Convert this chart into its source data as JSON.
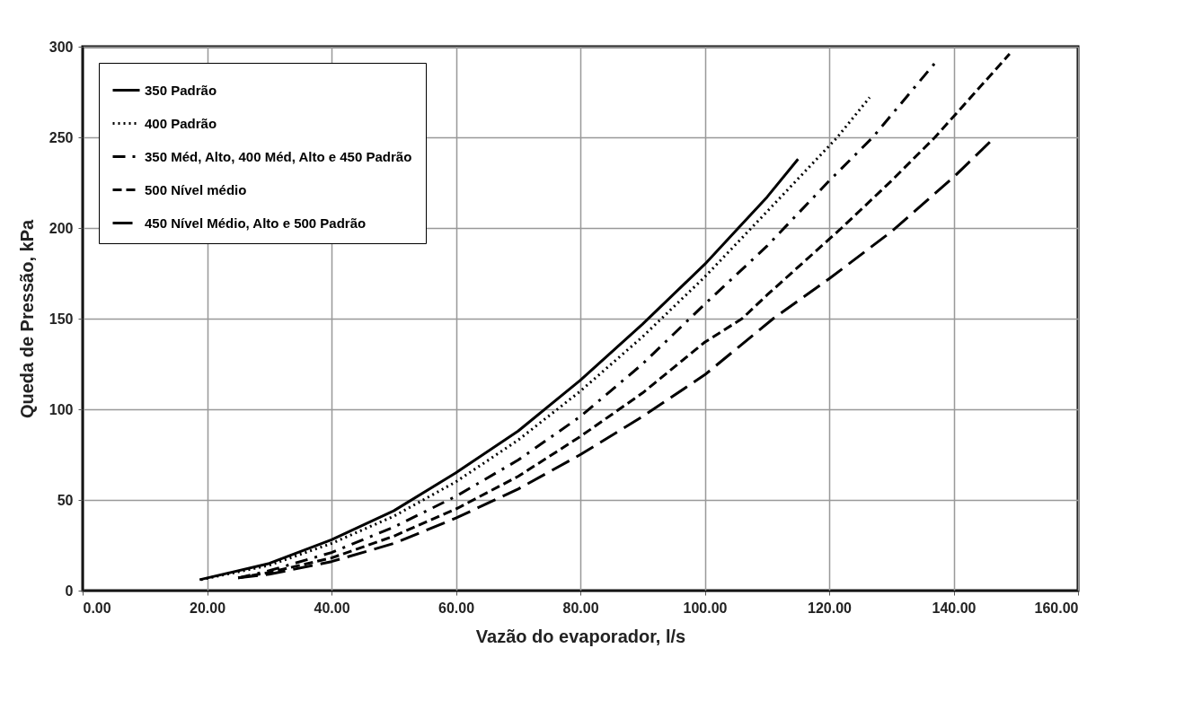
{
  "chart_data": {
    "type": "line",
    "xlabel": "Vazão do evaporador, l/s",
    "ylabel": "Queda de Pressão, kPa",
    "xlim": [
      0,
      160
    ],
    "xticks": [
      {
        "value": 0,
        "label": "0.00"
      },
      {
        "value": 20,
        "label": "20.00"
      },
      {
        "value": 40,
        "label": "40.00"
      },
      {
        "value": 60,
        "label": "60.00"
      },
      {
        "value": 80,
        "label": "80.00"
      },
      {
        "value": 100,
        "label": "100.00"
      },
      {
        "value": 120,
        "label": "120.00"
      },
      {
        "value": 140,
        "label": "140.00"
      },
      {
        "value": 160,
        "label": "160.00"
      }
    ],
    "ylim": [
      0,
      300
    ],
    "yticks": [
      0,
      50,
      100,
      150,
      200,
      250,
      300
    ],
    "grid": true,
    "legend": "top left",
    "marker": "none",
    "series": [
      {
        "name": "350 Padrão",
        "color": "#000000",
        "line_style": "solid",
        "x": [
          18.8,
          30,
          40,
          50,
          60,
          70,
          80,
          90,
          100,
          110,
          115
        ],
        "values": [
          6,
          15,
          28,
          44,
          65,
          88,
          116,
          147,
          180,
          217,
          238
        ]
      },
      {
        "name": "400 Padrão",
        "color": "#000000",
        "line_style": "dotted",
        "x": [
          19,
          30,
          40,
          50,
          60,
          70,
          80,
          90,
          100,
          110,
          121.3,
          126.5
        ],
        "values": [
          6,
          14,
          26,
          41,
          60,
          83,
          110,
          140,
          173,
          209,
          250,
          272
        ]
      },
      {
        "name": "350 Méd, Alto, 400 Méd, Alto e 450 Padrão",
        "color": "#000000",
        "line_style": "dashdot",
        "x": [
          25,
          30,
          40,
          50,
          60,
          70,
          80,
          90,
          100,
          110,
          120,
          127,
          137
        ],
        "values": [
          7,
          11,
          21,
          35,
          52,
          72,
          96,
          125,
          158,
          190,
          226,
          250,
          291
        ]
      },
      {
        "name": "500 Nível médio",
        "color": "#000000",
        "line_style": "dashed",
        "x": [
          25,
          30,
          40,
          50,
          60,
          70,
          80,
          90,
          100,
          106,
          110,
          122,
          130,
          137,
          149
        ],
        "values": [
          7,
          10,
          18,
          30,
          45,
          63,
          85,
          109,
          137,
          150,
          163,
          200,
          226,
          250,
          296
        ]
      },
      {
        "name": "450 Nível Médio, Alto e 500 Padrão",
        "color": "#000000",
        "line_style": "longdash",
        "x": [
          25,
          30,
          40,
          50,
          60,
          70,
          80,
          90,
          100,
          111,
          120,
          130,
          140,
          146
        ],
        "values": [
          7,
          9,
          16,
          26,
          40,
          56,
          75,
          96,
          119,
          150,
          172,
          198,
          228,
          248
        ]
      }
    ]
  }
}
